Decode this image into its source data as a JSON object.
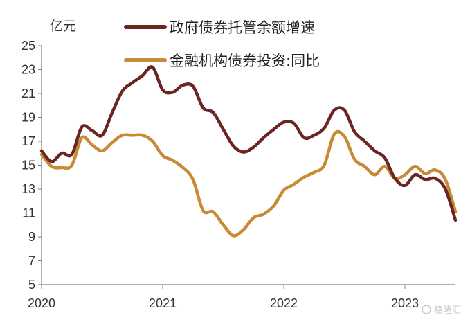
{
  "chart_data": {
    "type": "line",
    "unit": "亿元",
    "x_labels": [
      "2020",
      "2021",
      "2022",
      "2023"
    ],
    "x_range": [
      0,
      41
    ],
    "ylim": [
      5,
      25
    ],
    "y_ticks": [
      5,
      7,
      9,
      11,
      13,
      15,
      17,
      19,
      21,
      23,
      25
    ],
    "legend_position": "top",
    "series": [
      {
        "name": "政府债券托管余额增速",
        "color": "#6b2523",
        "x": [
          0,
          1,
          2,
          3,
          4,
          5,
          6,
          7,
          8,
          9,
          10,
          11,
          12,
          13,
          14,
          15,
          16,
          17,
          18,
          19,
          20,
          21,
          22,
          23,
          24,
          25,
          26,
          27,
          28,
          29,
          30,
          31,
          32,
          33,
          34,
          35,
          36,
          37,
          38,
          39,
          40,
          41
        ],
        "values": [
          16.2,
          15.3,
          16.0,
          15.9,
          18.2,
          17.9,
          17.5,
          19.4,
          21.2,
          21.9,
          22.5,
          23.2,
          21.3,
          21.1,
          21.7,
          21.6,
          19.8,
          19.4,
          18.0,
          16.6,
          16.1,
          16.5,
          17.3,
          18.0,
          18.6,
          18.5,
          17.3,
          17.5,
          18.1,
          19.6,
          19.6,
          17.8,
          17.0,
          16.2,
          15.6,
          13.9,
          13.3,
          14.2,
          13.8,
          13.9,
          13.0,
          10.4
        ]
      },
      {
        "name": "金融机构债券投资:同比",
        "color": "#c98a35",
        "x": [
          0,
          1,
          2,
          3,
          4,
          5,
          6,
          7,
          8,
          9,
          10,
          11,
          12,
          13,
          14,
          15,
          16,
          17,
          18,
          19,
          20,
          21,
          22,
          23,
          24,
          25,
          26,
          27,
          28,
          29,
          30,
          31,
          32,
          33,
          34,
          35,
          36,
          37,
          38,
          39,
          40,
          41
        ],
        "values": [
          15.9,
          14.9,
          14.8,
          15.0,
          17.3,
          16.7,
          16.2,
          16.9,
          17.5,
          17.5,
          17.5,
          17.0,
          15.8,
          15.4,
          14.8,
          13.8,
          11.2,
          11.1,
          10.0,
          9.1,
          9.6,
          10.6,
          10.9,
          11.6,
          12.9,
          13.4,
          14.0,
          14.4,
          15.0,
          17.6,
          17.4,
          15.5,
          14.9,
          14.2,
          14.9,
          13.9,
          14.2,
          14.9,
          14.3,
          14.6,
          13.8,
          11.1
        ]
      }
    ]
  },
  "watermark": {
    "text": "格隆汇"
  },
  "colors": {
    "axis": "#7f7f7f",
    "text": "#333333"
  }
}
